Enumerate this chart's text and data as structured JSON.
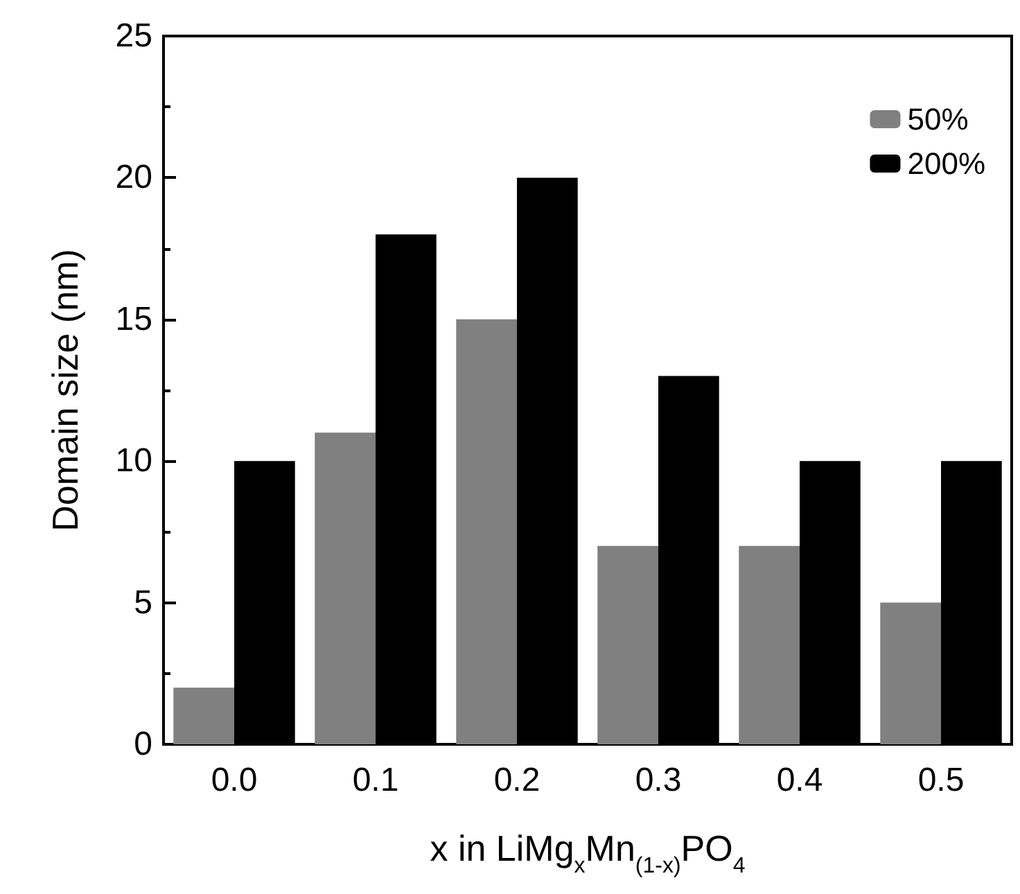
{
  "chart_data": {
    "type": "bar",
    "xlabel": "x in LiMg$_{x}$Mn$_{(1-x)}$PO$_{4}$",
    "ylabel": "Domain size (nm)",
    "categories": [
      "0.0",
      "0.1",
      "0.2",
      "0.3",
      "0.4",
      "0.5"
    ],
    "series": [
      {
        "name": "50%",
        "color": "#808080",
        "values": [
          2,
          11,
          15,
          7,
          7,
          5
        ]
      },
      {
        "name": "200%",
        "color": "#000000",
        "values": [
          10,
          18,
          20,
          13,
          10,
          10
        ]
      }
    ],
    "ylim": [
      0,
      25
    ],
    "yticks": [
      0,
      5,
      10,
      15,
      20,
      25
    ],
    "grid": false,
    "legend": "top right"
  }
}
